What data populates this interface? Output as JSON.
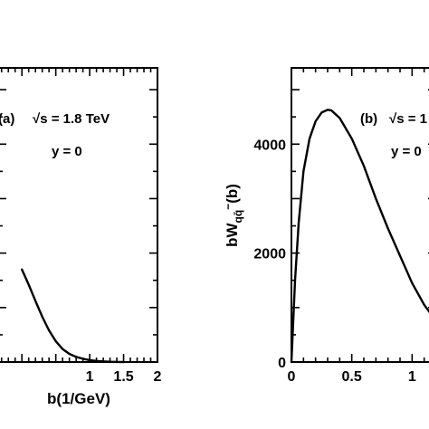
{
  "chart_data": [
    {
      "type": "line",
      "panel_label": "(a)",
      "annotation": "√s = 1.8 TeV",
      "annotation2": "y = 0",
      "xlabel": "b(1/GeV)",
      "ylabel": "",
      "xlim": [
        -0.35,
        2
      ],
      "ylim": [
        0,
        5400
      ],
      "xticks": [
        {
          "value": 1,
          "label": "1"
        },
        {
          "value": 1.5,
          "label": "1.5"
        },
        {
          "value": 2,
          "label": "2"
        }
      ],
      "yticks": [],
      "series": [
        {
          "x": [
            0.0,
            0.1,
            0.2,
            0.3,
            0.4,
            0.5,
            0.6,
            0.7,
            0.8,
            0.9,
            1.0,
            1.1,
            1.2,
            1.3,
            1.4,
            1.5
          ],
          "y": [
            1700,
            1420,
            1120,
            830,
            580,
            380,
            240,
            150,
            95,
            60,
            35,
            20,
            11,
            5,
            2,
            0
          ]
        }
      ]
    },
    {
      "type": "line",
      "panel_label": "(b)",
      "annotation": "√s = 1",
      "annotation2": "y = 0",
      "xlabel": "",
      "ylabel": "bW",
      "ylabel_sub": "qq̄",
      "ylabel_tail": "(b)",
      "xlim": [
        0,
        1.2
      ],
      "ylim": [
        0,
        5400
      ],
      "xticks": [
        {
          "value": 0,
          "label": "0"
        },
        {
          "value": 0.5,
          "label": "0.5"
        },
        {
          "value": 1,
          "label": "1"
        }
      ],
      "yticks": [
        {
          "value": 0,
          "label": "0"
        },
        {
          "value": 2000,
          "label": "2000"
        },
        {
          "value": 4000,
          "label": "4000"
        }
      ],
      "series": [
        {
          "x": [
            0.0,
            0.03,
            0.06,
            0.1,
            0.15,
            0.2,
            0.25,
            0.3,
            0.33,
            0.4,
            0.5,
            0.6,
            0.7,
            0.8,
            0.9,
            1.0,
            1.1,
            1.2
          ],
          "y": [
            0,
            1500,
            2550,
            3500,
            4100,
            4420,
            4580,
            4630,
            4620,
            4480,
            4100,
            3600,
            3000,
            2450,
            1950,
            1450,
            1050,
            750
          ]
        }
      ]
    }
  ]
}
